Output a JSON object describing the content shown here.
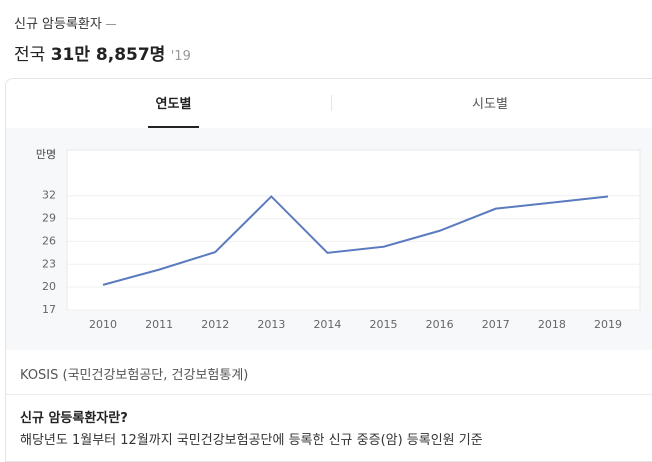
{
  "header": {
    "title": "신규 암등록환자",
    "region": "전국",
    "value": "31만 8,857명",
    "year": "'19"
  },
  "tabs": [
    "연도별",
    "시도별"
  ],
  "chart_data": {
    "type": "line",
    "unit_label": "만명",
    "categories": [
      "2010",
      "2011",
      "2012",
      "2013",
      "2014",
      "2015",
      "2016",
      "2017",
      "2018",
      "2019"
    ],
    "series": [
      {
        "name": "신규 암등록환자",
        "color": "#5b7bc0",
        "values": [
          20.3,
          22.3,
          24.6,
          31.9,
          24.5,
          25.3,
          27.4,
          30.3,
          31.1,
          31.9
        ]
      }
    ],
    "ylim": [
      17,
      38
    ],
    "yticks": [
      17,
      20,
      23,
      26,
      29,
      32
    ],
    "grid": true
  },
  "source": "KOSIS (국민건강보험공단, 건강보험통계)",
  "info": {
    "title": "신규 암등록환자란?",
    "text": "해당년도 1월부터 12월까지 국민건강보험공단에 등록한 신규 중증(암) 등록인원 기준"
  }
}
